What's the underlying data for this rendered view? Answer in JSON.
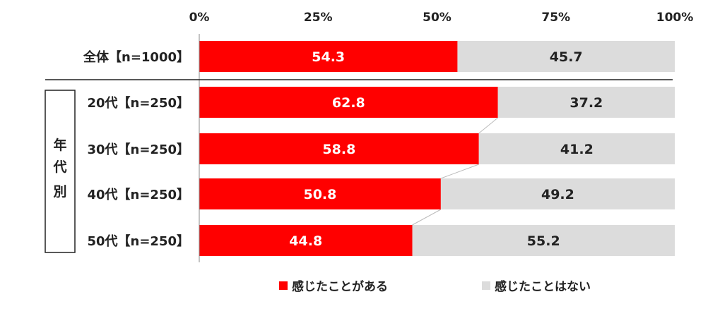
{
  "chart_data": {
    "type": "bar",
    "orientation": "horizontal",
    "stacked": true,
    "percent_stacked": true,
    "x_ticks": [
      "0%",
      "25%",
      "50%",
      "75%",
      "100%"
    ],
    "xlim": [
      0,
      100
    ],
    "categories": [
      "全体【n=1000】",
      "20代【n=250】",
      "30代【n=250】",
      "40代【n=250】",
      "50代【n=250】"
    ],
    "group_label": [
      "年",
      "代",
      "別"
    ],
    "series": [
      {
        "name": "感じたことがある",
        "color": "#ff0000",
        "values": [
          54.3,
          62.8,
          58.8,
          50.8,
          44.8
        ]
      },
      {
        "name": "感じたことはない",
        "color": "#dcdcdc",
        "values": [
          45.7,
          37.2,
          41.2,
          49.2,
          55.2
        ]
      }
    ],
    "data_labels": {
      "感じたことがある": [
        "54.3",
        "62.8",
        "58.8",
        "50.8",
        "44.8"
      ],
      "感じたことはない": [
        "45.7",
        "37.2",
        "41.2",
        "49.2",
        "55.2"
      ]
    },
    "legend_position": "bottom",
    "grid": false
  }
}
